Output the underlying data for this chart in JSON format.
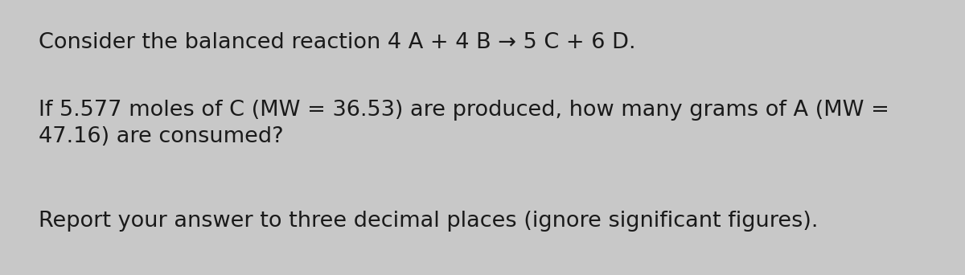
{
  "bg_color": "#c8c8c8",
  "text_color": "#1a1a1a",
  "line1": "Consider the balanced reaction 4 A + 4 B → 5 C + 6 D.",
  "line2a": "If 5.577 moles of C (MW = 36.53) are produced, how many grams of A (MW =",
  "line2b": "47.16) are consumed?",
  "line3": "Report your answer to three decimal places (ignore significant figures).",
  "font_size": 19.5,
  "fig_width": 12.0,
  "fig_height": 3.42,
  "dpi": 100
}
